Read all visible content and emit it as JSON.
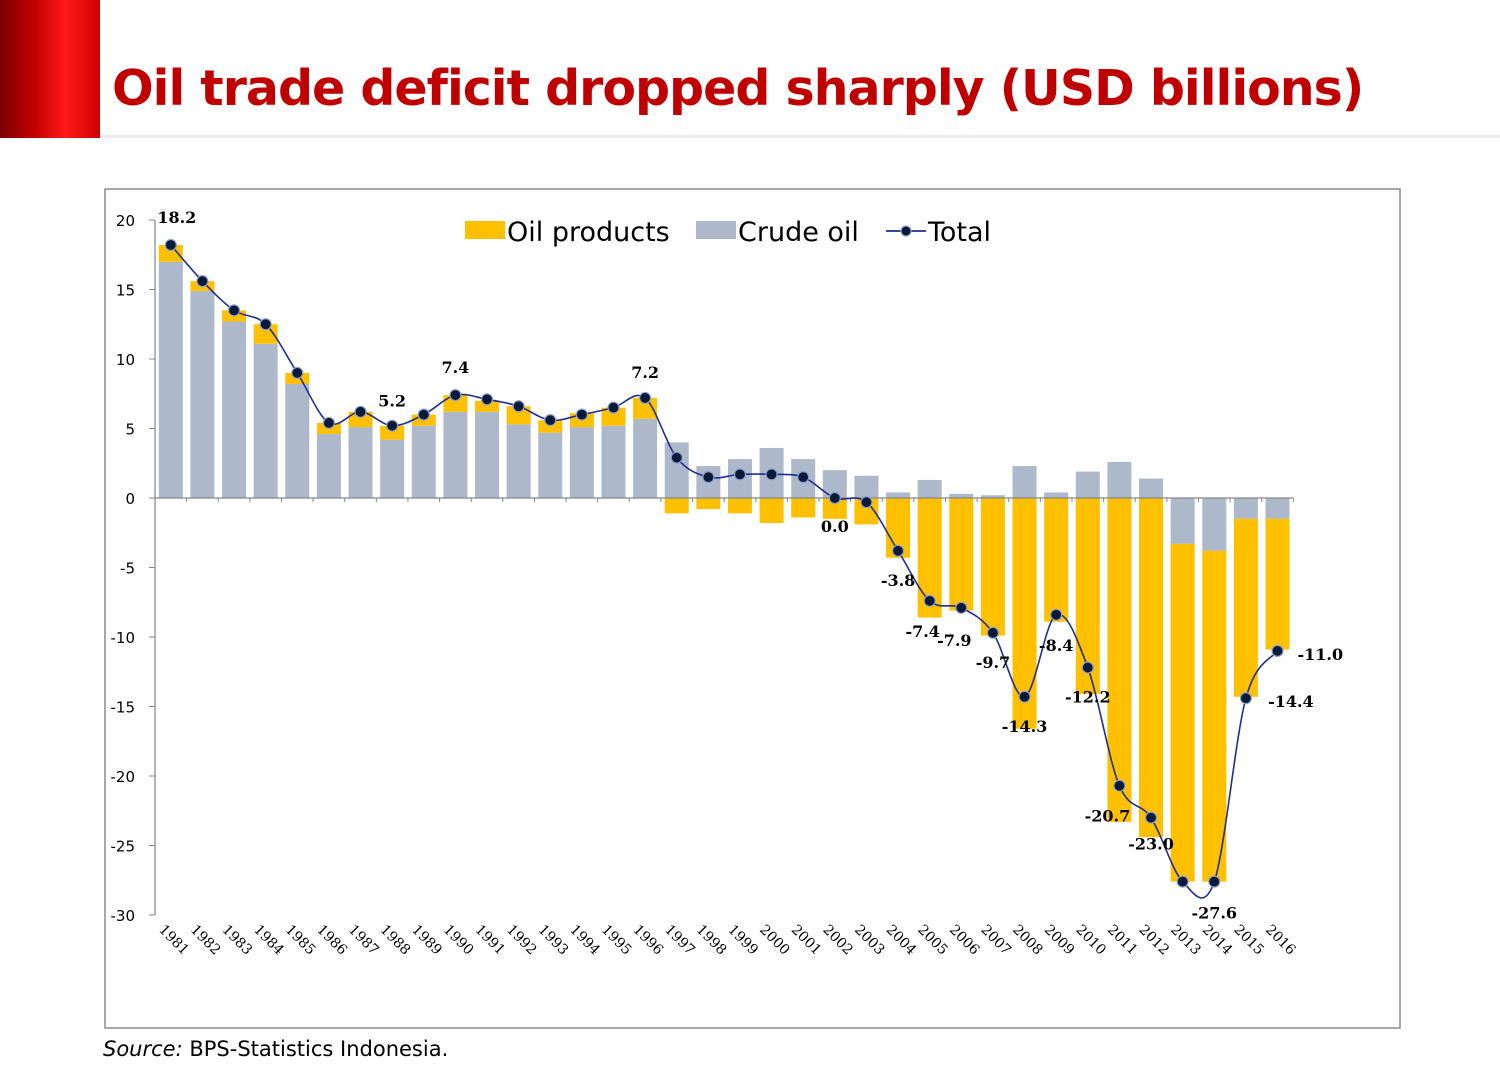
{
  "slide": {
    "title": "Oil trade deficit dropped sharply (USD billions)",
    "source_label": "Source:",
    "source_text": "BPS-Statistics Indonesia.",
    "accent_color": "#c00000"
  },
  "chart_data": {
    "type": "bar",
    "stacked": true,
    "categories": [
      "1981",
      "1982",
      "1983",
      "1984",
      "1985",
      "1986",
      "1987",
      "1988",
      "1989",
      "1990",
      "1991",
      "1992",
      "1993",
      "1994",
      "1995",
      "1996",
      "1997",
      "1998",
      "1999",
      "2000",
      "2001",
      "2002",
      "2003",
      "2004",
      "2005",
      "2006",
      "2007",
      "2008",
      "2009",
      "2010",
      "2011",
      "2012",
      "2013",
      "2014",
      "2015",
      "2016"
    ],
    "series": [
      {
        "name": "Oil products",
        "kind": "bar",
        "color": "#ffc000",
        "values": [
          1.2,
          0.7,
          0.8,
          1.4,
          0.8,
          0.8,
          1.1,
          1.0,
          0.8,
          1.2,
          0.8,
          1.3,
          0.9,
          1.0,
          1.3,
          1.5,
          -1.1,
          -0.8,
          -1.1,
          -1.8,
          -1.4,
          -1.5,
          -1.9,
          -4.3,
          -8.6,
          -8.1,
          -9.9,
          -16.6,
          -8.9,
          -14.1,
          -23.3,
          -24.4,
          -24.3,
          -23.8,
          -12.8,
          -9.4
        ]
      },
      {
        "name": "Crude oil",
        "kind": "bar",
        "color": "#adb9ca",
        "values": [
          17.0,
          14.9,
          12.7,
          11.1,
          8.2,
          4.6,
          5.1,
          4.2,
          5.2,
          6.2,
          6.2,
          5.3,
          4.7,
          5.1,
          5.2,
          5.7,
          4.0,
          2.3,
          2.8,
          3.6,
          2.8,
          2.0,
          1.6,
          0.4,
          1.3,
          0.3,
          0.2,
          2.3,
          0.4,
          1.9,
          2.6,
          1.4,
          -3.3,
          -3.8,
          -1.5,
          -1.5
        ]
      },
      {
        "name": "Total",
        "kind": "line",
        "color": "#1f2f8f",
        "values": [
          18.2,
          15.6,
          13.5,
          12.5,
          9.0,
          5.4,
          6.2,
          5.2,
          6.0,
          7.4,
          7.1,
          6.6,
          5.6,
          6.0,
          6.5,
          7.2,
          2.9,
          1.5,
          1.7,
          1.7,
          1.5,
          0.0,
          -0.3,
          -3.8,
          -7.4,
          -7.9,
          -9.7,
          -14.3,
          -8.4,
          -12.2,
          -20.7,
          -23.0,
          -27.6,
          -27.6,
          -14.4,
          -11.0
        ]
      }
    ],
    "data_labels": [
      {
        "category": "1981",
        "text": "18.2"
      },
      {
        "category": "1988",
        "text": "5.2"
      },
      {
        "category": "1990",
        "text": "7.4"
      },
      {
        "category": "1996",
        "text": "7.2"
      },
      {
        "category": "2002",
        "text": "0.0"
      },
      {
        "category": "2004",
        "text": "-3.8"
      },
      {
        "category": "2005",
        "text": "-7.4"
      },
      {
        "category": "2006",
        "text": "-7.9"
      },
      {
        "category": "2007",
        "text": "-9.7"
      },
      {
        "category": "2008",
        "text": "-14.3"
      },
      {
        "category": "2009",
        "text": "-8.4"
      },
      {
        "category": "2010",
        "text": "-12.2"
      },
      {
        "category": "2011",
        "text": "-20.7"
      },
      {
        "category": "2012",
        "text": "-23.0"
      },
      {
        "category": "2014",
        "text": "-27.6"
      },
      {
        "category": "2015",
        "text": "-14.4"
      },
      {
        "category": "2016",
        "text": "-11.0"
      }
    ],
    "y_ticks": [
      20,
      15,
      10,
      5,
      0,
      -5,
      -10,
      -15,
      -20,
      -25,
      -30
    ],
    "ylim": [
      -30,
      20
    ],
    "grid": false,
    "legend_position": "top-center",
    "title": "",
    "xlabel": "",
    "ylabel": ""
  }
}
